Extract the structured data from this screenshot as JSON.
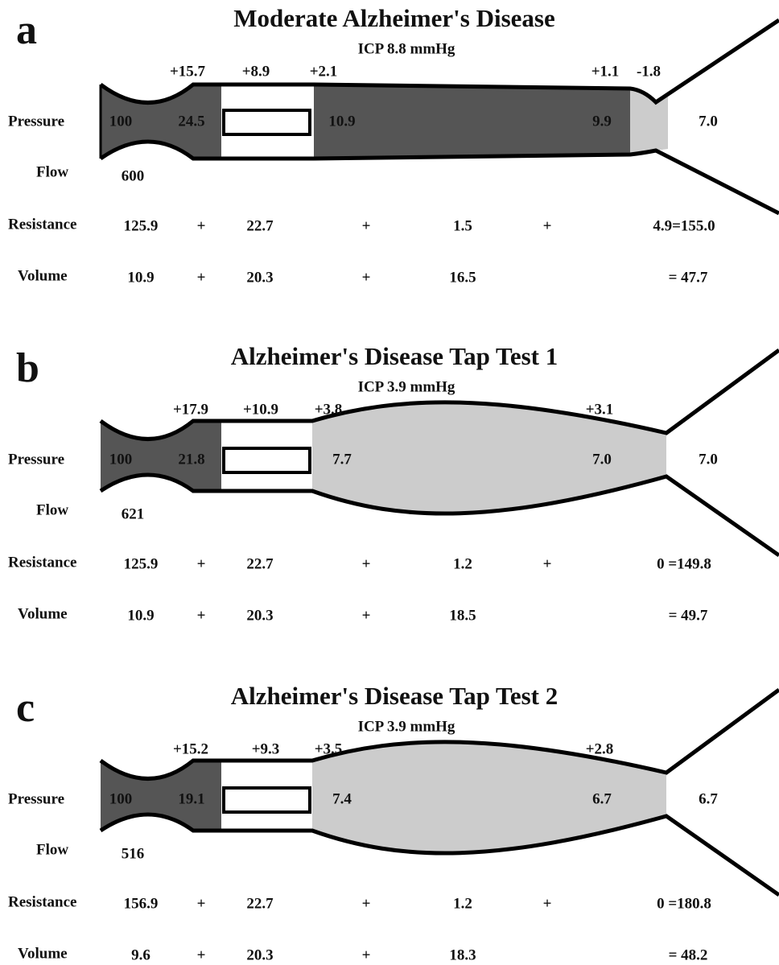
{
  "panels": [
    {
      "letter": "a",
      "title": "Moderate Alzheimer's Disease",
      "icp": "ICP  8.8 mmHg",
      "changes": [
        "+15.7",
        "+8.9",
        "+2.1",
        "+1.1",
        "-1.8"
      ],
      "pressure_label": "Pressure",
      "pressures": [
        "100",
        "24.5",
        "10.9",
        "9.9",
        "7.0"
      ],
      "flow_label": "Flow",
      "flow": "600",
      "resistance_label": "Resistance",
      "resistance": [
        "125.9",
        "+",
        "22.7",
        "+",
        "1.5",
        "+",
        "4.9=155.0"
      ],
      "volume_label": "Volume",
      "volume": [
        "10.9",
        "+",
        "20.3",
        "+",
        "16.5",
        "= 47.7"
      ]
    },
    {
      "letter": "b",
      "title": "Alzheimer's Disease Tap Test 1",
      "icp": "ICP  3.9  mmHg",
      "changes": [
        "+17.9",
        "+10.9",
        "+3.8",
        "+3.1"
      ],
      "pressure_label": "Pressure",
      "pressures": [
        "100",
        "21.8",
        "7.7",
        "7.0",
        "7.0"
      ],
      "flow_label": "Flow",
      "flow": "621",
      "resistance_label": "Resistance",
      "resistance": [
        "125.9",
        "+",
        "22.7",
        "+",
        "1.2",
        "+",
        "0 =149.8"
      ],
      "volume_label": "Volume",
      "volume": [
        "10.9",
        "+",
        "20.3",
        "+",
        "18.5",
        "= 49.7"
      ]
    },
    {
      "letter": "c",
      "title": "Alzheimer's Disease Tap Test 2",
      "icp": "ICP  3.9  mmHg",
      "changes": [
        "+15.2",
        "+9.3",
        "+3.5",
        "+2.8"
      ],
      "pressure_label": "Pressure",
      "pressures": [
        "100",
        "19.1",
        "7.4",
        "6.7",
        "6.7"
      ],
      "flow_label": "Flow",
      "flow": "516",
      "resistance_label": "Resistance",
      "resistance": [
        "156.9",
        "+",
        "22.7",
        "+",
        "1.2",
        "+",
        "0 =180.8"
      ],
      "volume_label": "Volume",
      "volume": [
        "9.6",
        "+",
        "20.3",
        "+",
        "18.3",
        "= 48.2"
      ]
    }
  ]
}
